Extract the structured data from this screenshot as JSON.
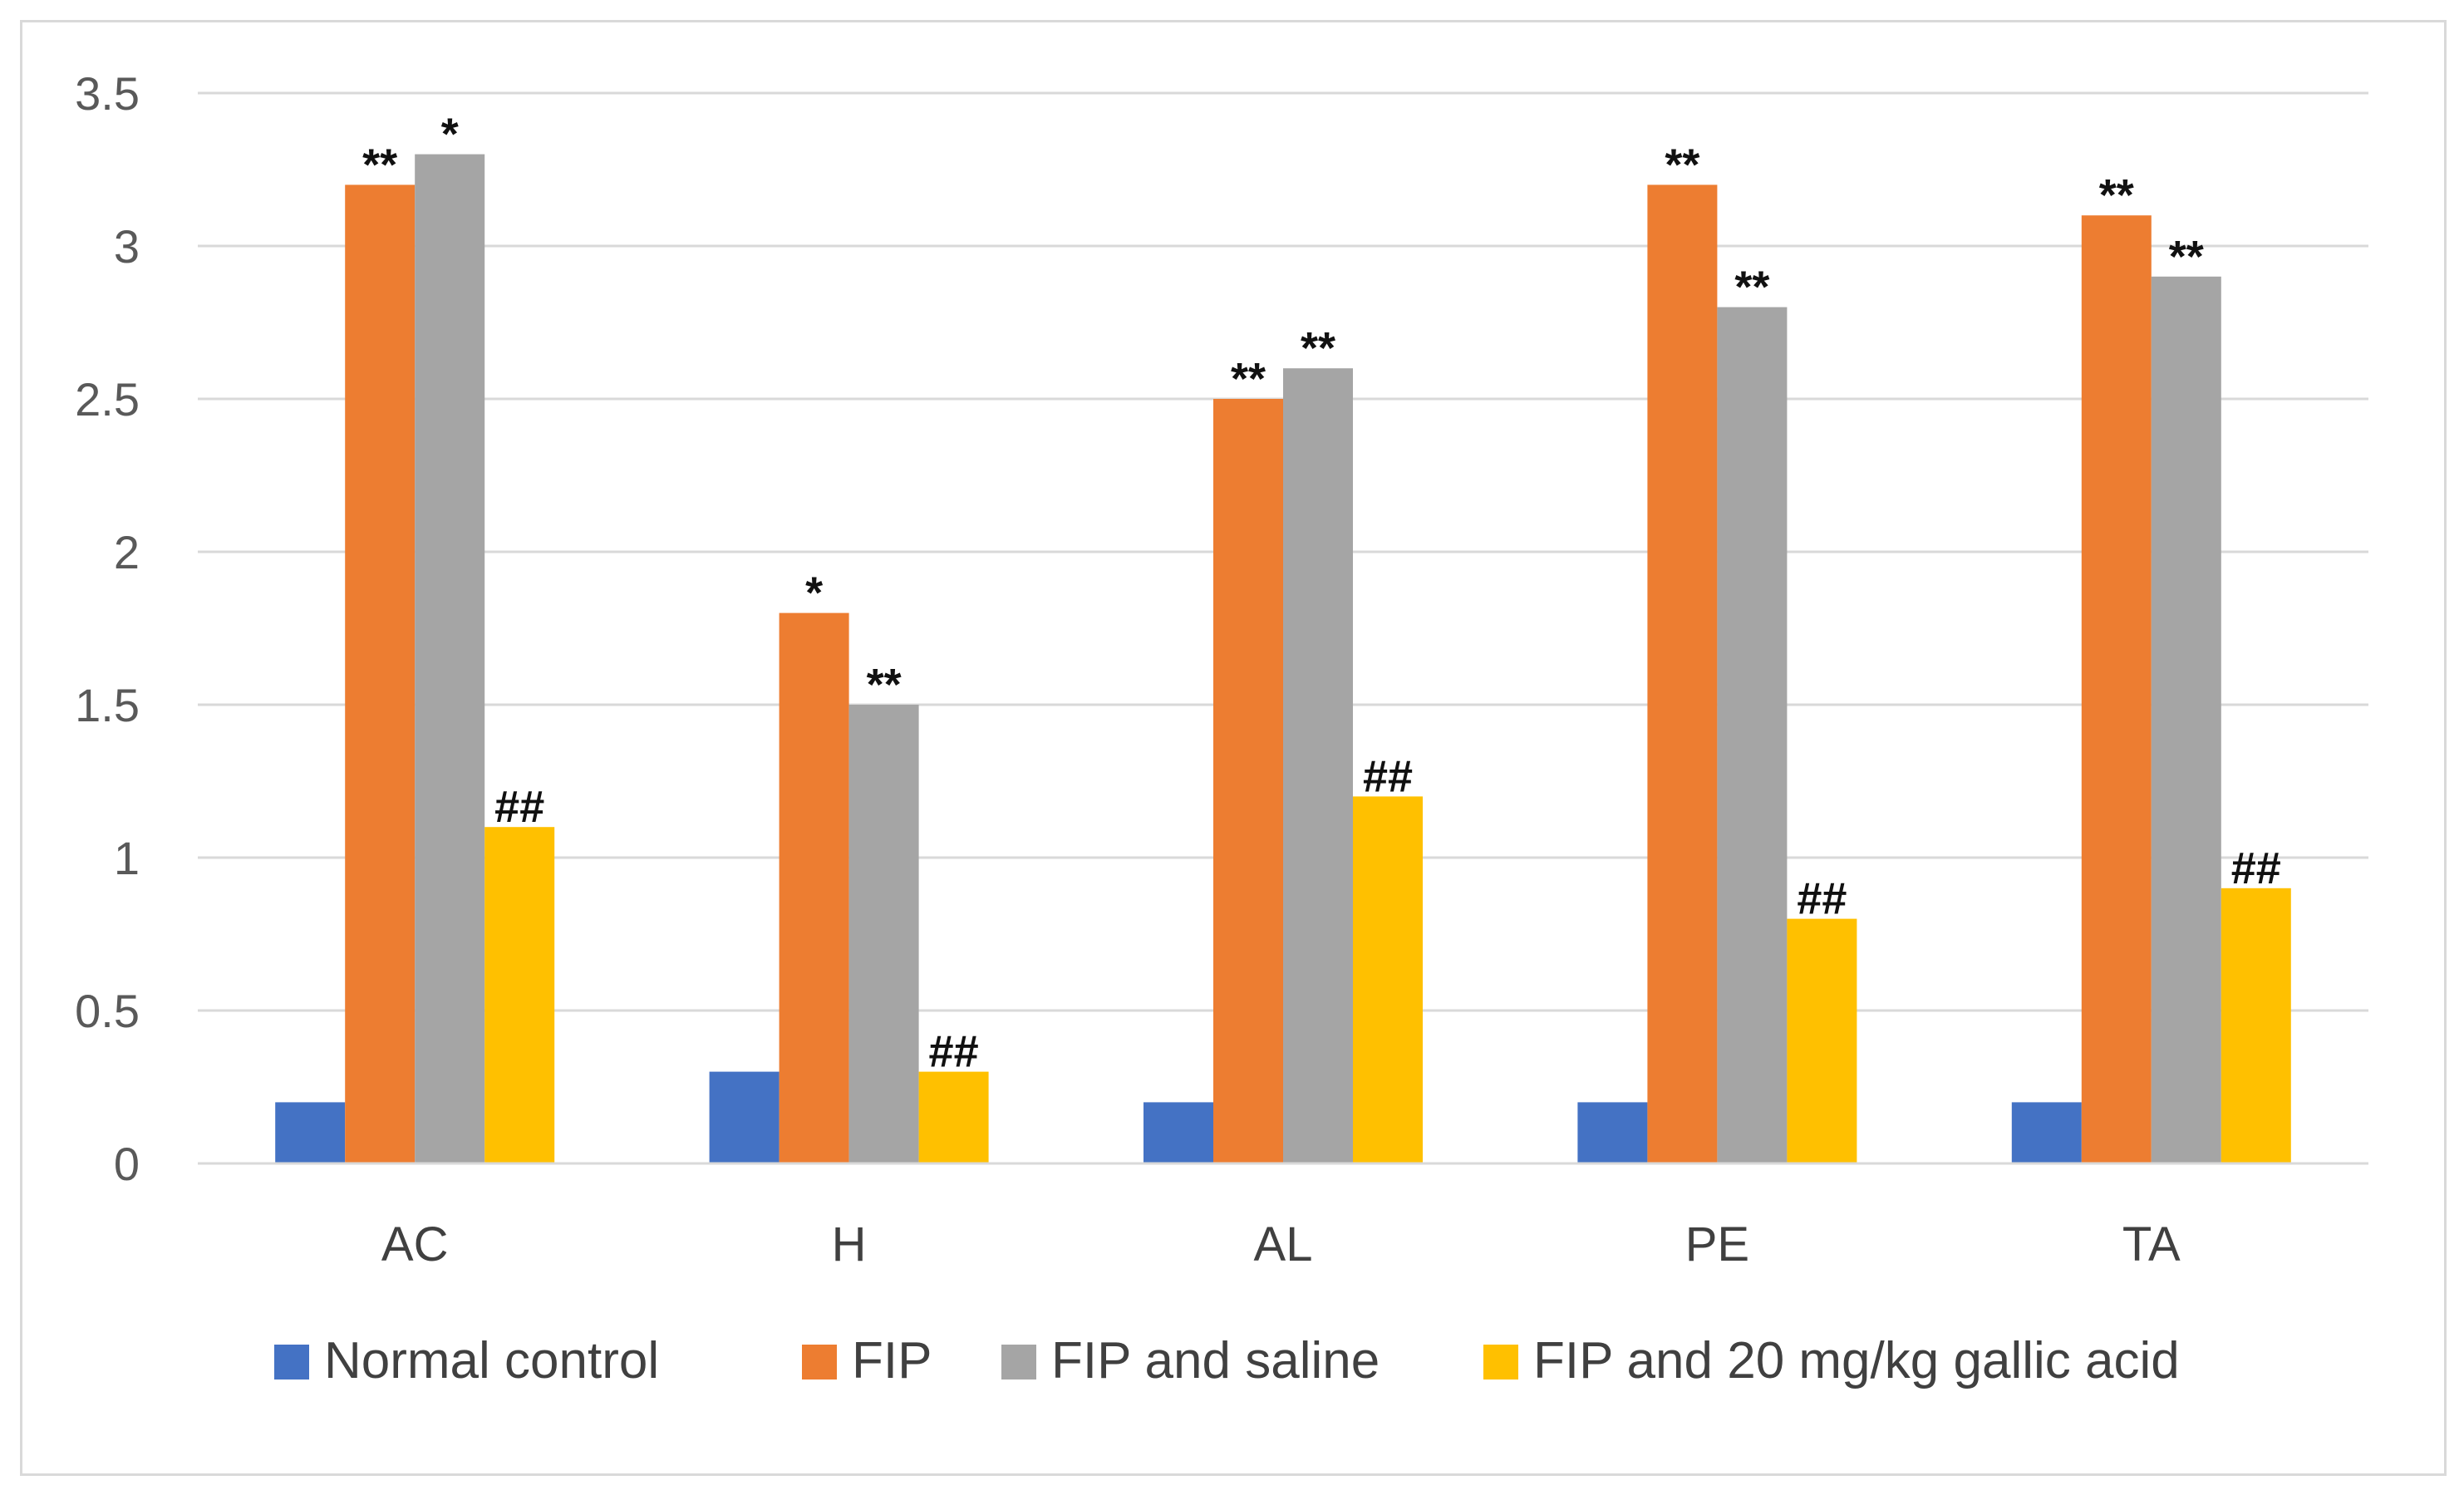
{
  "chart_data": {
    "type": "bar",
    "categories": [
      "AC",
      "H",
      "AL",
      "PE",
      "TA"
    ],
    "ylim": [
      0,
      3.5
    ],
    "yticks": [
      "0",
      "0.5",
      "1",
      "1.5",
      "2",
      "2.5",
      "3",
      "3.5"
    ],
    "grid": true,
    "legend_position": "bottom",
    "series": [
      {
        "name": "Normal  control",
        "color": "#4472c4",
        "values": [
          0.2,
          0.3,
          0.2,
          0.2,
          0.2
        ],
        "annotations": [
          "",
          "",
          "",
          "",
          ""
        ]
      },
      {
        "name": "FIP",
        "color": "#ed7d31",
        "values": [
          3.2,
          1.8,
          2.5,
          3.2,
          3.1
        ],
        "annotations": [
          "**",
          "*",
          "**",
          "**",
          "**"
        ]
      },
      {
        "name": "FIP and saline",
        "color": "#a5a5a5",
        "values": [
          3.3,
          1.5,
          2.6,
          2.8,
          2.9
        ],
        "annotations": [
          "*",
          "**",
          "**",
          "**",
          "**"
        ]
      },
      {
        "name": "FIP and 20 mg/kg gallic acid",
        "color": "#ffc000",
        "values": [
          1.1,
          0.3,
          1.2,
          0.8,
          0.9
        ],
        "annotations": [
          "##",
          "##",
          "##",
          "##",
          "##"
        ]
      }
    ]
  }
}
